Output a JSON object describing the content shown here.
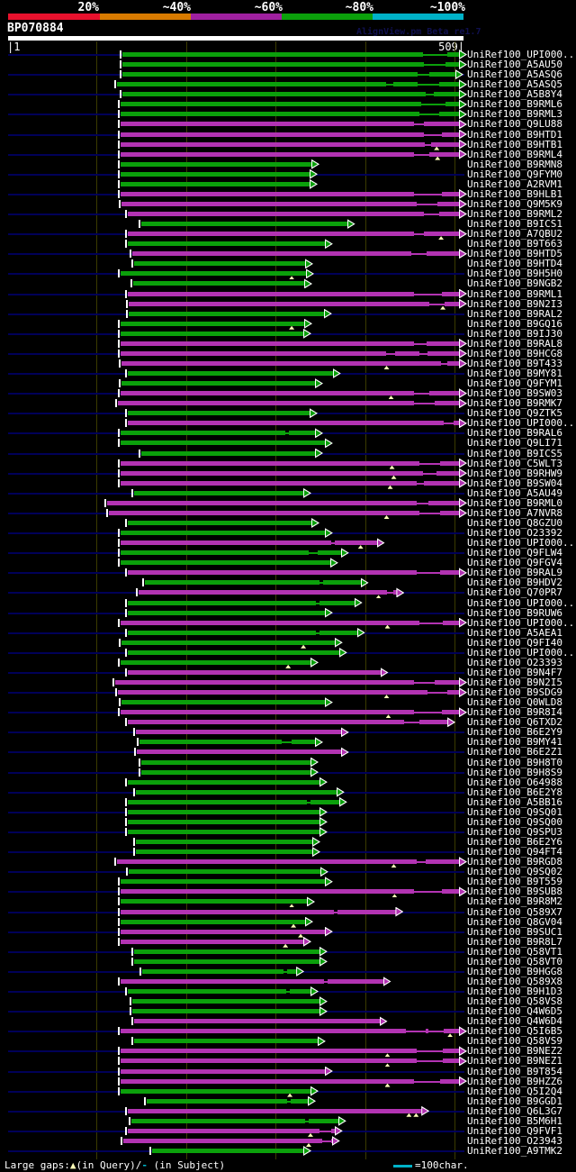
{
  "header": {
    "query_id": "BP070884",
    "watermark": "AlignView.pm Beta re1.7",
    "axis_left": "|1",
    "axis_right": "509|"
  },
  "footer": {
    "label_prefix": "Large gaps:",
    "query_marker": "▲",
    "mid_text": "(in Query)/",
    "subject_marker": "-",
    "suffix_text": " (in Subject)",
    "scale_label": "=100char."
  },
  "chart_data": {
    "type": "bar",
    "subtype": "horizontal-alignment-hit-map",
    "title": "BP070884",
    "x_range": [
      1,
      509
    ],
    "grid_interval_chars": 100,
    "legend_position": "top",
    "identity_legend": {
      "labels": [
        "20%",
        "~40%",
        "~60%",
        "~80%",
        "~100%"
      ],
      "colors": [
        "#e8112d",
        "#d97b00",
        "#a020a0",
        "#0ba00b",
        "#00b2c8"
      ]
    },
    "colors": {
      "green": "#0ba00b",
      "magenta": "#b233b2",
      "guide": "#000058",
      "grid": "#3b3b00",
      "gap_marker": "#ffffb8",
      "query_bar": "#ffffff"
    },
    "color_meaning": {
      "green": "~80% identity",
      "magenta": "~60% identity"
    },
    "rows": [
      {
        "l": "UniRef100_UPI000..",
        "c": "g",
        "s": 129,
        "e": 509,
        "t": [
          [
            465,
            492
          ]
        ]
      },
      {
        "l": "UniRef100_A5AU50",
        "c": "g",
        "s": 129,
        "e": 509,
        "t": [
          [
            466,
            490
          ]
        ]
      },
      {
        "l": "UniRef100_A5ASQ6",
        "c": "g",
        "s": 129,
        "e": 505,
        "t": [
          [
            459,
            472
          ]
        ]
      },
      {
        "l": "UniRef100_A5ASQ5",
        "c": "g",
        "s": 123,
        "e": 509,
        "t": [
          [
            424,
            432
          ],
          [
            459,
            483
          ]
        ]
      },
      {
        "l": "UniRef100_A5B8Y4",
        "c": "g",
        "s": 129,
        "e": 509,
        "t": [
          [
            468,
            477
          ]
        ]
      },
      {
        "l": "UniRef100_B9RML6",
        "c": "g",
        "s": 127,
        "e": 509,
        "t": [
          [
            463,
            490
          ]
        ]
      },
      {
        "l": "UniRef100_B9RML3",
        "c": "g",
        "s": 127,
        "e": 509,
        "t": [
          [
            461,
            483
          ]
        ]
      },
      {
        "l": "UniRef100_Q9LU88",
        "c": "m",
        "s": 127,
        "e": 509,
        "t": [
          [
            455,
            466
          ]
        ]
      },
      {
        "l": "UniRef100_B9HTD1",
        "c": "m",
        "s": 127,
        "e": 509,
        "t": [
          [
            466,
            486
          ]
        ]
      },
      {
        "l": "UniRef100_B9HTB1",
        "c": "m",
        "s": 127,
        "e": 509,
        "q": [
          480
        ],
        "t": [
          [
            467,
            474
          ]
        ]
      },
      {
        "l": "UniRef100_B9RML4",
        "c": "m",
        "s": 127,
        "e": 509,
        "q": [
          481
        ],
        "t": [
          [
            455,
            472
          ]
        ]
      },
      {
        "l": "UniRef100_B9RMN8",
        "c": "g",
        "s": 127,
        "e": 344
      },
      {
        "l": "UniRef100_Q9FYM0",
        "c": "g",
        "s": 127,
        "e": 342
      },
      {
        "l": "UniRef100_A2RVM1",
        "c": "g",
        "s": 127,
        "e": 342
      },
      {
        "l": "UniRef100_B9HLB1",
        "c": "m",
        "s": 127,
        "e": 509,
        "t": [
          [
            455,
            486
          ]
        ]
      },
      {
        "l": "UniRef100_Q9M5K9",
        "c": "m",
        "s": 128,
        "e": 509,
        "t": [
          [
            458,
            481
          ]
        ]
      },
      {
        "l": "UniRef100_B9RML2",
        "c": "m",
        "s": 135,
        "e": 509,
        "t": [
          [
            466,
            483
          ]
        ]
      },
      {
        "l": "UniRef100_B9ICS1",
        "c": "g",
        "s": 150,
        "e": 384
      },
      {
        "l": "UniRef100_A7QBU2",
        "c": "m",
        "s": 135,
        "e": 509,
        "q": [
          485
        ],
        "t": [
          [
            455,
            466
          ]
        ]
      },
      {
        "l": "UniRef100_B9T663",
        "c": "g",
        "s": 135,
        "e": 359
      },
      {
        "l": "UniRef100_B9HTD5",
        "c": "m",
        "s": 140,
        "e": 509,
        "t": [
          [
            452,
            469
          ]
        ]
      },
      {
        "l": "UniRef100_B9HTD4",
        "c": "g",
        "s": 142,
        "e": 337
      },
      {
        "l": "UniRef100_B9H5H0",
        "c": "g",
        "s": 127,
        "e": 338,
        "q": [
          318
        ]
      },
      {
        "l": "UniRef100_B9NGB2",
        "c": "g",
        "s": 141,
        "e": 336
      },
      {
        "l": "UniRef100_B9RML1",
        "c": "m",
        "s": 135,
        "e": 509,
        "t": [
          [
            455,
            486
          ]
        ]
      },
      {
        "l": "UniRef100_B9N2I3",
        "c": "m",
        "s": 136,
        "e": 509,
        "q": [
          487
        ],
        "t": [
          [
            472,
            489
          ]
        ]
      },
      {
        "l": "UniRef100_B9RAL2",
        "c": "g",
        "s": 136,
        "e": 358
      },
      {
        "l": "UniRef100_B9GQ16",
        "c": "g",
        "s": 127,
        "e": 336,
        "q": [
          318
        ]
      },
      {
        "l": "UniRef100_B9IJ30",
        "c": "g",
        "s": 127,
        "e": 335
      },
      {
        "l": "UniRef100_B9RAL8",
        "c": "m",
        "s": 127,
        "e": 509,
        "t": [
          [
            455,
            469
          ]
        ]
      },
      {
        "l": "UniRef100_B9HCG8",
        "c": "m",
        "s": 127,
        "e": 509,
        "t": [
          [
            424,
            434
          ],
          [
            461,
            470
          ]
        ]
      },
      {
        "l": "UniRef100_B9T433",
        "c": "m",
        "s": 128,
        "e": 509,
        "q": [
          424
        ],
        "t": [
          [
            485,
            492
          ]
        ]
      },
      {
        "l": "UniRef100_B9MY81",
        "c": "g",
        "s": 135,
        "e": 368
      },
      {
        "l": "UniRef100_Q9FYM1",
        "c": "g",
        "s": 128,
        "e": 348
      },
      {
        "l": "UniRef100_B9SW03",
        "c": "m",
        "s": 127,
        "e": 509,
        "q": [
          429
        ],
        "t": [
          [
            455,
            472
          ]
        ]
      },
      {
        "l": "UniRef100_B9RMK7",
        "c": "m",
        "s": 124,
        "e": 509,
        "t": [
          [
            455,
            478
          ]
        ]
      },
      {
        "l": "UniRef100_Q9ZTK5",
        "c": "g",
        "s": 135,
        "e": 342
      },
      {
        "l": "UniRef100_UPI000..",
        "c": "m",
        "s": 135,
        "e": 509,
        "t": [
          [
            488,
            499
          ]
        ]
      },
      {
        "l": "UniRef100_B9RAL6",
        "c": "g",
        "s": 127,
        "e": 348,
        "t": [
          [
            311,
            315
          ]
        ]
      },
      {
        "l": "UniRef100_Q9LI71",
        "c": "g",
        "s": 127,
        "e": 359
      },
      {
        "l": "UniRef100_B9ICS5",
        "c": "g",
        "s": 150,
        "e": 348
      },
      {
        "l": "UniRef100_C5WLT3",
        "c": "m",
        "s": 127,
        "e": 509,
        "q": [
          430
        ],
        "t": [
          [
            461,
            484
          ]
        ]
      },
      {
        "l": "UniRef100_B9RHW9",
        "c": "m",
        "s": 127,
        "e": 509,
        "q": [
          432
        ],
        "t": [
          [
            465,
            480
          ]
        ]
      },
      {
        "l": "UniRef100_B9SW04",
        "c": "m",
        "s": 127,
        "e": 509,
        "q": [
          428
        ],
        "t": [
          [
            458,
            466
          ]
        ]
      },
      {
        "l": "UniRef100_A5AU49",
        "c": "g",
        "s": 142,
        "e": 335
      },
      {
        "l": "UniRef100_B9RML0",
        "c": "m",
        "s": 112,
        "e": 509,
        "t": [
          [
            458,
            471
          ]
        ]
      },
      {
        "l": "UniRef100_A7NVR8",
        "c": "m",
        "s": 114,
        "e": 509,
        "q": [
          424
        ],
        "t": [
          [
            461,
            484
          ]
        ]
      },
      {
        "l": "UniRef100_Q8GZU0",
        "c": "g",
        "s": 135,
        "e": 344
      },
      {
        "l": "UniRef100_O23392",
        "c": "g",
        "s": 127,
        "e": 359
      },
      {
        "l": "UniRef100_UPI000..",
        "c": "m",
        "s": 127,
        "e": 417,
        "q": [
          395
        ],
        "t": [
          [
            362,
            366
          ]
        ]
      },
      {
        "l": "UniRef100_Q9FLW4",
        "c": "g",
        "s": 127,
        "e": 377,
        "t": [
          [
            337,
            347
          ]
        ]
      },
      {
        "l": "UniRef100_Q9FGV4",
        "c": "g",
        "s": 127,
        "e": 365
      },
      {
        "l": "UniRef100_B9RAL9",
        "c": "m",
        "s": 135,
        "e": 509,
        "t": [
          [
            458,
            484
          ]
        ]
      },
      {
        "l": "UniRef100_B9HDV2",
        "c": "g",
        "s": 154,
        "e": 399,
        "t": [
          [
            349,
            353
          ]
        ]
      },
      {
        "l": "UniRef100_Q70PR7",
        "c": "m",
        "s": 147,
        "e": 439,
        "q": [
          415
        ],
        "t": [
          [
            425,
            432
          ]
        ]
      },
      {
        "l": "UniRef100_UPI000..",
        "c": "g",
        "s": 135,
        "e": 392,
        "t": [
          [
            345,
            349
          ]
        ]
      },
      {
        "l": "UniRef100_B9RUW6",
        "c": "g",
        "s": 135,
        "e": 359
      },
      {
        "l": "UniRef100_UPI000..",
        "c": "m",
        "s": 127,
        "e": 509,
        "q": [
          425
        ],
        "t": [
          [
            461,
            487
          ]
        ]
      },
      {
        "l": "UniRef100_A5AEA1",
        "c": "g",
        "s": 135,
        "e": 395,
        "t": [
          [
            345,
            349
          ]
        ]
      },
      {
        "l": "UniRef100_Q9FI40",
        "c": "g",
        "s": 128,
        "e": 370,
        "q": [
          331
        ]
      },
      {
        "l": "UniRef100_UPI000..",
        "c": "g",
        "s": 135,
        "e": 375
      },
      {
        "l": "UniRef100_O23393",
        "c": "g",
        "s": 127,
        "e": 343,
        "q": [
          314
        ]
      },
      {
        "l": "UniRef100_B9N4F7",
        "c": "m",
        "s": 135,
        "e": 421
      },
      {
        "l": "UniRef100_B9N2I5",
        "c": "m",
        "s": 121,
        "e": 509,
        "t": [
          [
            455,
            478
          ]
        ]
      },
      {
        "l": "UniRef100_B9SDG9",
        "c": "m",
        "s": 124,
        "e": 509,
        "q": [
          424
        ],
        "t": [
          [
            470,
            492
          ]
        ]
      },
      {
        "l": "UniRef100_Q0WLD8",
        "c": "g",
        "s": 128,
        "e": 359
      },
      {
        "l": "UniRef100_B9R8I4",
        "c": "m",
        "s": 127,
        "e": 509,
        "q": [
          426
        ],
        "t": [
          [
            455,
            486
          ]
        ]
      },
      {
        "l": "UniRef100_Q6TXD2",
        "c": "m",
        "s": 135,
        "e": 496,
        "t": [
          [
            444,
            461
          ]
        ]
      },
      {
        "l": "UniRef100_B6E2Y9",
        "c": "m",
        "s": 144,
        "e": 377
      },
      {
        "l": "UniRef100_B9MY41",
        "c": "g",
        "s": 148,
        "e": 348,
        "t": [
          [
            307,
            318
          ]
        ]
      },
      {
        "l": "UniRef100_B6E2Z1",
        "c": "m",
        "s": 145,
        "e": 377
      },
      {
        "l": "UniRef100_B9H8T0",
        "c": "g",
        "s": 150,
        "e": 343
      },
      {
        "l": "UniRef100_B9H8S9",
        "c": "g",
        "s": 150,
        "e": 343
      },
      {
        "l": "UniRef100_O64988",
        "c": "g",
        "s": 135,
        "e": 353
      },
      {
        "l": "UniRef100_B6E2Y8",
        "c": "g",
        "s": 144,
        "e": 372
      },
      {
        "l": "UniRef100_A5BB16",
        "c": "g",
        "s": 135,
        "e": 375,
        "t": [
          [
            335,
            339
          ]
        ]
      },
      {
        "l": "UniRef100_Q9SQ01",
        "c": "g",
        "s": 135,
        "e": 353
      },
      {
        "l": "UniRef100_Q9SQ00",
        "c": "g",
        "s": 135,
        "e": 353
      },
      {
        "l": "UniRef100_Q9SPU3",
        "c": "g",
        "s": 135,
        "e": 353
      },
      {
        "l": "UniRef100_B6E2Y6",
        "c": "g",
        "s": 144,
        "e": 345
      },
      {
        "l": "UniRef100_Q94FT4",
        "c": "g",
        "s": 144,
        "e": 345
      },
      {
        "l": "UniRef100_B9RGD8",
        "c": "m",
        "s": 123,
        "e": 509,
        "q": [
          432
        ],
        "t": [
          [
            458,
            468
          ]
        ]
      },
      {
        "l": "UniRef100_Q9SQ02",
        "c": "g",
        "s": 136,
        "e": 354
      },
      {
        "l": "UniRef100_B9T559",
        "c": "g",
        "s": 127,
        "e": 359
      },
      {
        "l": "UniRef100_B9SUB8",
        "c": "m",
        "s": 127,
        "e": 509,
        "q": [
          433
        ],
        "t": [
          [
            455,
            486
          ]
        ]
      },
      {
        "l": "UniRef100_B9R8M2",
        "c": "g",
        "s": 127,
        "e": 339,
        "q": [
          318
        ]
      },
      {
        "l": "UniRef100_Q589X7",
        "c": "m",
        "s": 127,
        "e": 438,
        "t": [
          [
            365,
            369
          ]
        ]
      },
      {
        "l": "UniRef100_Q8GV04",
        "c": "g",
        "s": 127,
        "e": 337,
        "q": [
          320
        ]
      },
      {
        "l": "UniRef100_B9SUC1",
        "c": "m",
        "s": 127,
        "e": 359,
        "q": [
          328
        ]
      },
      {
        "l": "UniRef100_B9R8L7",
        "c": "m",
        "s": 127,
        "e": 335,
        "q": [
          311
        ]
      },
      {
        "l": "UniRef100_Q58VT1",
        "c": "g",
        "s": 142,
        "e": 353
      },
      {
        "l": "UniRef100_Q58VT0",
        "c": "g",
        "s": 142,
        "e": 353
      },
      {
        "l": "UniRef100_B9HGG8",
        "c": "g",
        "s": 151,
        "e": 327,
        "t": [
          [
            309,
            313
          ]
        ]
      },
      {
        "l": "UniRef100_Q589X8",
        "c": "m",
        "s": 127,
        "e": 424,
        "t": [
          [
            354,
            358
          ]
        ]
      },
      {
        "l": "UniRef100_B9H1D3",
        "c": "g",
        "s": 135,
        "e": 343,
        "t": [
          [
            312,
            316
          ]
        ]
      },
      {
        "l": "UniRef100_Q58VS8",
        "c": "g",
        "s": 140,
        "e": 353
      },
      {
        "l": "UniRef100_Q4W6D5",
        "c": "g",
        "s": 140,
        "e": 353
      },
      {
        "l": "UniRef100_Q4W6D4",
        "c": "m",
        "s": 142,
        "e": 420
      },
      {
        "l": "UniRef100_Q5I6B5",
        "c": "m",
        "s": 127,
        "e": 509,
        "q": [
          495
        ],
        "t": [
          [
            446,
            468
          ],
          [
            471,
            488
          ]
        ]
      },
      {
        "l": "UniRef100_Q58VS9",
        "c": "g",
        "s": 142,
        "e": 351
      },
      {
        "l": "UniRef100_B9NEZ2",
        "c": "m",
        "s": 127,
        "e": 509,
        "q": [
          425
        ],
        "t": [
          [
            458,
            487
          ]
        ]
      },
      {
        "l": "UniRef100_B9NEZ1",
        "c": "m",
        "s": 127,
        "e": 509,
        "q": [
          425
        ],
        "t": [
          [
            458,
            487
          ]
        ]
      },
      {
        "l": "UniRef100_B9T854",
        "c": "m",
        "s": 127,
        "e": 359
      },
      {
        "l": "UniRef100_B9HZZ6",
        "c": "m",
        "s": 127,
        "e": 509,
        "q": [
          425
        ],
        "t": [
          [
            455,
            484
          ]
        ]
      },
      {
        "l": "UniRef100_Q5I2Q4",
        "c": "g",
        "s": 127,
        "e": 343,
        "q": [
          316
        ]
      },
      {
        "l": "UniRef100_B9GGD1",
        "c": "g",
        "s": 156,
        "e": 340,
        "t": [
          [
            313,
            317
          ]
        ]
      },
      {
        "l": "UniRef100_Q6L3G7",
        "c": "m",
        "s": 135,
        "e": 467,
        "q": [
          449,
          457
        ]
      },
      {
        "l": "UniRef100_B5M6H1",
        "c": "g",
        "s": 139,
        "e": 374,
        "t": [
          [
            333,
            337
          ]
        ]
      },
      {
        "l": "UniRef100_Q9FVF1",
        "c": "m",
        "s": 135,
        "e": 370,
        "q": [
          339
        ],
        "t": [
          [
            349,
            362
          ]
        ]
      },
      {
        "l": "UniRef100_O23943",
        "c": "m",
        "s": 130,
        "e": 367,
        "q": [
          337
        ],
        "t": [
          [
            352,
            362
          ]
        ]
      },
      {
        "l": "UniRef100_A9TMK2",
        "c": "g",
        "s": 162,
        "e": 335
      }
    ]
  }
}
